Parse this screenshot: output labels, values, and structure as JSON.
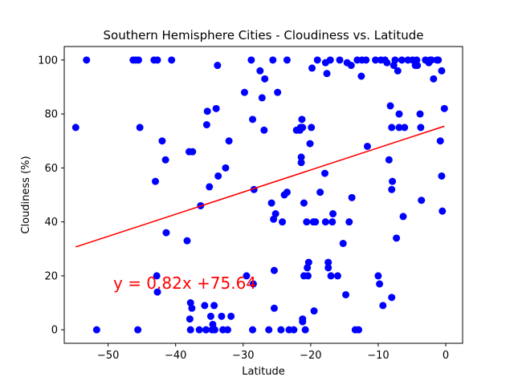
{
  "chart_data": {
    "type": "scatter",
    "title": "Southern Hemisphere Cities - Cloudiness vs. Latitude",
    "xlabel": "Latitude",
    "ylabel": "Cloudiness (%)",
    "xlim": [
      -56.5,
      2.5
    ],
    "ylim": [
      -5,
      105
    ],
    "xticks": [
      -50,
      -40,
      -30,
      -20,
      -10,
      0
    ],
    "yticks": [
      0,
      20,
      40,
      60,
      80,
      100
    ],
    "grid": false,
    "point_color": "#0000ff",
    "line_color": "#ff0000",
    "regression": {
      "slope": 0.82,
      "intercept": 75.64,
      "x_range": [
        -54.8,
        -0.2
      ],
      "equation": "y = 0.82x +75.64"
    },
    "points": [
      [
        -54.8,
        75
      ],
      [
        -53.2,
        100
      ],
      [
        -51.7,
        0
      ],
      [
        -46.3,
        100
      ],
      [
        -45.9,
        100
      ],
      [
        -45.5,
        100
      ],
      [
        -45.3,
        75
      ],
      [
        -45.6,
        0
      ],
      [
        -43.2,
        100
      ],
      [
        -42.7,
        100
      ],
      [
        -43.0,
        55
      ],
      [
        -42.8,
        20
      ],
      [
        -42.7,
        14
      ],
      [
        -42.0,
        70
      ],
      [
        -41.5,
        63
      ],
      [
        -41.4,
        36
      ],
      [
        -40.6,
        100
      ],
      [
        -38.3,
        33
      ],
      [
        -38.0,
        66
      ],
      [
        -37.5,
        66
      ],
      [
        -37.9,
        4
      ],
      [
        -37.8,
        10
      ],
      [
        -37.6,
        8
      ],
      [
        -37.8,
        0
      ],
      [
        -36.5,
        0
      ],
      [
        -36.3,
        46
      ],
      [
        -35.7,
        9
      ],
      [
        -35.5,
        0
      ],
      [
        -35.4,
        76
      ],
      [
        -35.3,
        81
      ],
      [
        -35.0,
        53
      ],
      [
        -34.8,
        5
      ],
      [
        -34.6,
        0
      ],
      [
        -34.5,
        2
      ],
      [
        -34.3,
        9
      ],
      [
        -34.2,
        0
      ],
      [
        -34.0,
        82
      ],
      [
        -33.8,
        98
      ],
      [
        -33.7,
        57
      ],
      [
        -33.2,
        5
      ],
      [
        -33.0,
        0
      ],
      [
        -32.6,
        60
      ],
      [
        -32.1,
        70
      ],
      [
        -31.8,
        5
      ],
      [
        -32.3,
        0
      ],
      [
        -29.8,
        88
      ],
      [
        -29.5,
        20
      ],
      [
        -28.8,
        100
      ],
      [
        -28.6,
        78
      ],
      [
        -28.4,
        52
      ],
      [
        -28.5,
        17
      ],
      [
        -28.6,
        0
      ],
      [
        -27.5,
        96
      ],
      [
        -27.2,
        86
      ],
      [
        -26.9,
        74
      ],
      [
        -26.8,
        93
      ],
      [
        -26.2,
        0
      ],
      [
        -25.8,
        47
      ],
      [
        -25.6,
        100
      ],
      [
        -25.5,
        41
      ],
      [
        -25.4,
        22
      ],
      [
        -25.4,
        8
      ],
      [
        -25.2,
        43
      ],
      [
        -24.9,
        88
      ],
      [
        -24.4,
        0
      ],
      [
        -24.2,
        40
      ],
      [
        -23.9,
        50
      ],
      [
        -23.5,
        51
      ],
      [
        -23.5,
        100
      ],
      [
        -23.2,
        0
      ],
      [
        -22.5,
        0
      ],
      [
        -22.1,
        74
      ],
      [
        -21.6,
        74
      ],
      [
        -21.5,
        75
      ],
      [
        -21.4,
        64
      ],
      [
        -21.4,
        62
      ],
      [
        -21.2,
        4
      ],
      [
        -21.2,
        3
      ],
      [
        -21.0,
        20
      ],
      [
        -21.0,
        47
      ],
      [
        -21.3,
        78
      ],
      [
        -21.2,
        75
      ],
      [
        -20.8,
        0
      ],
      [
        -20.5,
        23
      ],
      [
        -20.3,
        25
      ],
      [
        -20.6,
        40
      ],
      [
        -20.4,
        20
      ],
      [
        -20.1,
        69
      ],
      [
        -19.9,
        75
      ],
      [
        -19.8,
        97
      ],
      [
        -19.6,
        40
      ],
      [
        -19.5,
        7
      ],
      [
        -19.3,
        40
      ],
      [
        -19.0,
        100
      ],
      [
        -18.6,
        51
      ],
      [
        -17.9,
        58
      ],
      [
        -17.8,
        40
      ],
      [
        -17.8,
        99
      ],
      [
        -17.6,
        95
      ],
      [
        -17.4,
        23
      ],
      [
        -17.4,
        25
      ],
      [
        -17.1,
        100
      ],
      [
        -17.0,
        20
      ],
      [
        -16.8,
        40
      ],
      [
        -16.7,
        43
      ],
      [
        -16.0,
        20
      ],
      [
        -15.7,
        100
      ],
      [
        -15.2,
        32
      ],
      [
        -14.8,
        13
      ],
      [
        -14.6,
        99
      ],
      [
        -14.3,
        40
      ],
      [
        -14.0,
        98
      ],
      [
        -13.9,
        49
      ],
      [
        -13.4,
        0
      ],
      [
        -13.1,
        100
      ],
      [
        -12.9,
        0
      ],
      [
        -12.5,
        94
      ],
      [
        -12.4,
        100
      ],
      [
        -11.8,
        100
      ],
      [
        -11.6,
        68
      ],
      [
        -10.4,
        100
      ],
      [
        -10.0,
        20
      ],
      [
        -9.8,
        17
      ],
      [
        -9.6,
        100
      ],
      [
        -9.3,
        9
      ],
      [
        -9.0,
        100
      ],
      [
        -8.7,
        99
      ],
      [
        -8.4,
        63
      ],
      [
        -8.2,
        83
      ],
      [
        -8.0,
        75
      ],
      [
        -8.0,
        52
      ],
      [
        -8.0,
        12
      ],
      [
        -7.9,
        55
      ],
      [
        -7.7,
        98
      ],
      [
        -7.5,
        100
      ],
      [
        -7.3,
        34
      ],
      [
        -7.1,
        96
      ],
      [
        -6.9,
        80
      ],
      [
        -6.9,
        75
      ],
      [
        -6.5,
        100
      ],
      [
        -6.3,
        42
      ],
      [
        -6.1,
        75
      ],
      [
        -5.6,
        100
      ],
      [
        -4.9,
        100
      ],
      [
        -4.5,
        98
      ],
      [
        -4.3,
        100
      ],
      [
        -4.2,
        98
      ],
      [
        -3.8,
        80
      ],
      [
        -3.7,
        75
      ],
      [
        -3.6,
        48
      ],
      [
        -3.0,
        100
      ],
      [
        -2.5,
        99
      ],
      [
        -2.3,
        100
      ],
      [
        -2.1,
        100
      ],
      [
        -1.8,
        93
      ],
      [
        -1.3,
        100
      ],
      [
        -1.1,
        100
      ],
      [
        -0.8,
        70
      ],
      [
        -0.6,
        96
      ],
      [
        -0.6,
        57
      ],
      [
        -0.5,
        44
      ],
      [
        -0.2,
        82
      ]
    ]
  }
}
